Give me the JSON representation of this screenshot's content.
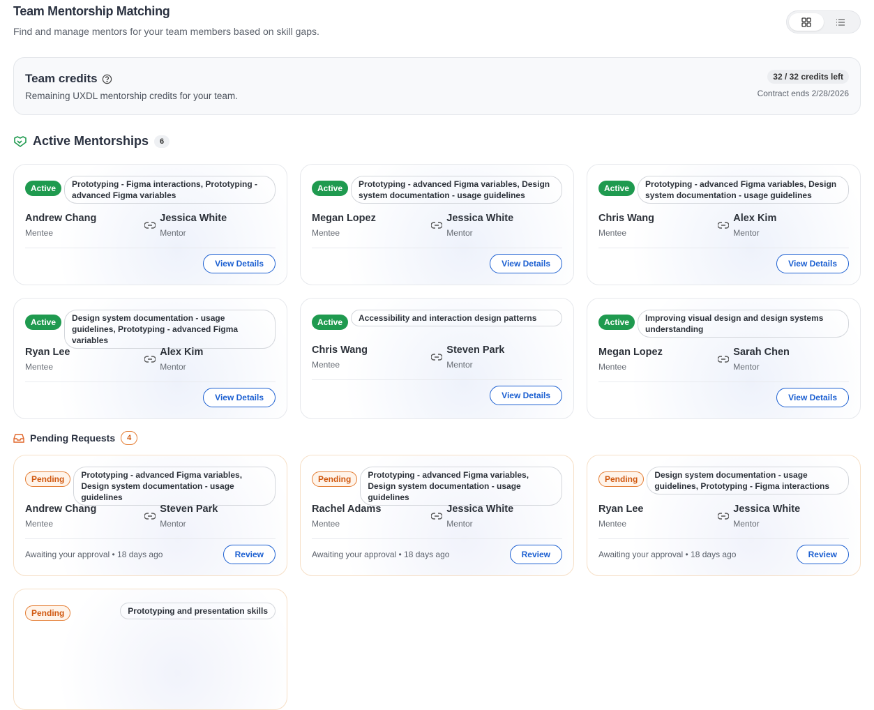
{
  "header": {
    "title": "Team Mentorship Matching",
    "subtitle": "Find and manage mentors for your team members based on skill gaps."
  },
  "credits": {
    "title": "Team credits",
    "description": "Remaining UXDL mentorship credits for your team.",
    "remaining": "32 / 32 credits left",
    "contract": "Contract ends 2/28/2026"
  },
  "active": {
    "title": "Active Mentorships",
    "count": 6,
    "cards": [
      {
        "status": "Active",
        "skills": "Prototyping - Figma interactions, Prototyping - advanced Figma variables",
        "mentee": "Andrew Chang",
        "mentee_role": "Mentee",
        "mentor": "Jessica White",
        "mentor_role": "Mentor",
        "action": "View Details"
      },
      {
        "status": "Active",
        "skills": "Prototyping - advanced Figma variables, Design system documentation - usage guidelines",
        "mentee": "Megan Lopez",
        "mentee_role": "Mentee",
        "mentor": "Jessica White",
        "mentor_role": "Mentor",
        "action": "View Details"
      },
      {
        "status": "Active",
        "skills": "Prototyping - advanced Figma variables, Design system documentation - usage guidelines",
        "mentee": "Chris Wang",
        "mentee_role": "Mentee",
        "mentor": "Alex Kim",
        "mentor_role": "Mentor",
        "action": "View Details"
      },
      {
        "status": "Active",
        "skills": "Design system documentation - usage guidelines, Prototyping - advanced Figma variables",
        "mentee": "Ryan Lee",
        "mentee_role": "Mentee",
        "mentor": "Alex Kim",
        "mentor_role": "Mentor",
        "action": "View Details"
      },
      {
        "status": "Active",
        "skills": "Accessibility and interaction design patterns",
        "mentee": "Chris Wang",
        "mentee_role": "Mentee",
        "mentor": "Steven Park",
        "mentor_role": "Mentor",
        "action": "View Details"
      },
      {
        "status": "Active",
        "skills": "Improving visual design and design systems understanding",
        "mentee": "Megan Lopez",
        "mentee_role": "Mentee",
        "mentor": "Sarah Chen",
        "mentor_role": "Mentor",
        "action": "View Details"
      }
    ]
  },
  "pending": {
    "title": "Pending Requests",
    "count": 4,
    "cards": [
      {
        "status": "Pending",
        "skills": "Prototyping - advanced Figma variables, Design system documentation - usage guidelines",
        "mentee": "Andrew Chang",
        "mentee_role": "Mentee",
        "mentor": "Steven Park",
        "mentor_role": "Mentor",
        "note": "Awaiting your approval • 18 days ago",
        "action": "Review"
      },
      {
        "status": "Pending",
        "skills": "Prototyping - advanced Figma variables, Design system documentation - usage guidelines",
        "mentee": "Rachel Adams",
        "mentee_role": "Mentee",
        "mentor": "Jessica White",
        "mentor_role": "Mentor",
        "note": "Awaiting your approval • 18 days ago",
        "action": "Review"
      },
      {
        "status": "Pending",
        "skills": "Design system documentation - usage guidelines, Prototyping - Figma interactions",
        "mentee": "Ryan Lee",
        "mentee_role": "Mentee",
        "mentor": "Jessica White",
        "mentor_role": "Mentor",
        "note": "Awaiting your approval • 18 days ago",
        "action": "Review"
      },
      {
        "status": "Pending",
        "skills": "Prototyping and presentation skills"
      }
    ]
  }
}
